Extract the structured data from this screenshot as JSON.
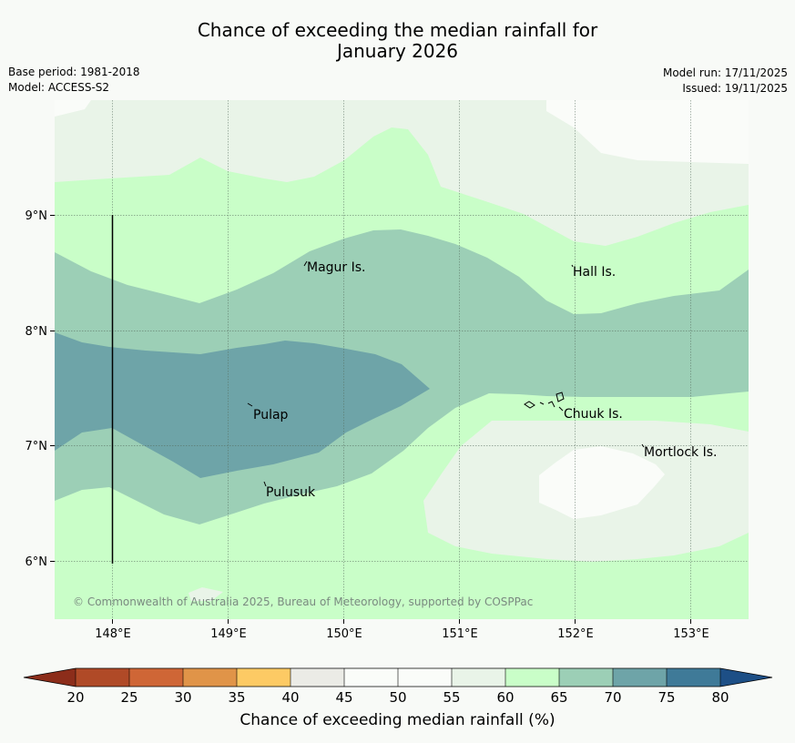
{
  "title": {
    "line1": "Chance of exceeding the median rainfall for",
    "line2": "January 2026"
  },
  "meta": {
    "base_period": "Base period: 1981-2018",
    "model": "Model: ACCESS-S2",
    "model_run": "Model run: 17/11/2025",
    "issued": "Issued: 19/11/2025"
  },
  "map": {
    "lat_labels": [
      "9°N",
      "8°N",
      "7°N",
      "6°N"
    ],
    "lon_labels": [
      "148°E",
      "149°E",
      "150°E",
      "151°E",
      "152°E",
      "153°E"
    ],
    "places": {
      "magur": "Magur Is.",
      "hall": "Hall Is.",
      "pulap": "Pulap",
      "chuuk": "Chuuk Is.",
      "mortlock": "Mortlock Is.",
      "pulusuk": "Pulusuk"
    },
    "copyright": "© Commonwealth of Australia 2025, Bureau of Meteorology, supported by COSPPac"
  },
  "colorbar": {
    "title": "Chance of exceeding median rainfall (%)",
    "ticks": [
      "20",
      "25",
      "30",
      "35",
      "40",
      "45",
      "50",
      "55",
      "60",
      "65",
      "70",
      "75",
      "80"
    ],
    "colors": {
      "below20": "#8c2d1a",
      "c20_25": "#b04a27",
      "c25_30": "#cf6636",
      "c30_35": "#e09448",
      "c35_40": "#fdca64",
      "c40_45": "#ebebe6",
      "c45_50": "#fafcf9",
      "c50_55": "#fafcf9",
      "c55_60": "#e9f4e8",
      "c60_65": "#c9fec8",
      "c65_70": "#9ccfb6",
      "c70_75": "#6ea4a8",
      "c75_80": "#3f7a98",
      "above80": "#1d4f86"
    }
  }
}
